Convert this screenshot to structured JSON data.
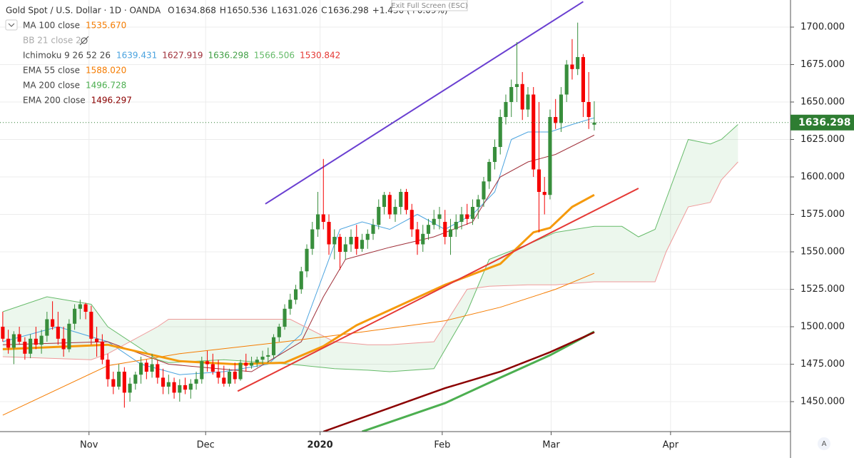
{
  "chart_data": {
    "type": "candlestick",
    "title": "Gold Spot / U.S. Dollar · 1D · OANDA",
    "ohlc_header": [
      {
        "key": "O",
        "value": "1634.868"
      },
      {
        "key": "H",
        "value": "1650.536"
      },
      {
        "key": "L",
        "value": "1631.026"
      },
      {
        "key": "C",
        "value": "1636.298"
      }
    ],
    "change": "+1.430 (+0.09%)",
    "exit_button": "Exit Full Screen (ESC)",
    "auto_button": "A",
    "last_price": {
      "value": 1636.298,
      "label": "1636.298"
    },
    "last_price_color": "#2e7d32",
    "up_color": "#388e3c",
    "down_color": "#f50000",
    "grid": true,
    "xlim": [
      -0.5,
      142.5
    ],
    "ylim": [
      1430,
      1718.1
    ],
    "yticks": [
      {
        "value": 1450,
        "label": "1450.000"
      },
      {
        "value": 1475,
        "label": "1475.000"
      },
      {
        "value": 1500,
        "label": "1500.000"
      },
      {
        "value": 1525,
        "label": "1525.000"
      },
      {
        "value": 1550,
        "label": "1550.000"
      },
      {
        "value": 1575,
        "label": "1575.000"
      },
      {
        "value": 1600,
        "label": "1600.000"
      },
      {
        "value": 1625,
        "label": "1625.000"
      },
      {
        "value": 1650,
        "label": "1650.000"
      },
      {
        "value": 1675,
        "label": "1675.000"
      },
      {
        "value": 1700,
        "label": "1700.000"
      }
    ],
    "xticks": [
      {
        "value": 15.6,
        "label": "Nov"
      },
      {
        "value": 36.7,
        "label": "Dec"
      },
      {
        "value": 57.4,
        "label": "2020"
      },
      {
        "value": 79.5,
        "label": "Feb"
      },
      {
        "value": 99.2,
        "label": "Mar"
      },
      {
        "value": 120.8,
        "label": "Apr"
      }
    ],
    "candles": [
      [
        1500,
        1510,
        1490,
        1492
      ],
      [
        1492,
        1498,
        1482,
        1486
      ],
      [
        1486,
        1497,
        1475,
        1495
      ],
      [
        1495,
        1500,
        1488,
        1490
      ],
      [
        1490,
        1493,
        1478,
        1482
      ],
      [
        1482,
        1495,
        1479,
        1492
      ],
      [
        1492,
        1500,
        1485,
        1488
      ],
      [
        1488,
        1498,
        1482,
        1494
      ],
      [
        1494,
        1510,
        1490,
        1505
      ],
      [
        1505,
        1517,
        1498,
        1500
      ],
      [
        1500,
        1510,
        1488,
        1492
      ],
      [
        1492,
        1500,
        1480,
        1485
      ],
      [
        1485,
        1505,
        1483,
        1502
      ],
      [
        1502,
        1515,
        1498,
        1512
      ],
      [
        1512,
        1518,
        1505,
        1515
      ],
      [
        1515,
        1516,
        1505,
        1510
      ],
      [
        1510,
        1514,
        1488,
        1492
      ],
      [
        1492,
        1500,
        1480,
        1490
      ],
      [
        1490,
        1495,
        1475,
        1478
      ],
      [
        1478,
        1482,
        1460,
        1465
      ],
      [
        1465,
        1470,
        1455,
        1460
      ],
      [
        1460,
        1475,
        1458,
        1470
      ],
      [
        1470,
        1473,
        1446,
        1456
      ],
      [
        1456,
        1466,
        1450,
        1462
      ],
      [
        1462,
        1470,
        1458,
        1468
      ],
      [
        1468,
        1480,
        1462,
        1476
      ],
      [
        1476,
        1478,
        1465,
        1470
      ],
      [
        1470,
        1482,
        1466,
        1475
      ],
      [
        1475,
        1478,
        1462,
        1466
      ],
      [
        1466,
        1472,
        1455,
        1460
      ],
      [
        1460,
        1468,
        1455,
        1463
      ],
      [
        1463,
        1466,
        1452,
        1456
      ],
      [
        1456,
        1465,
        1450,
        1461
      ],
      [
        1461,
        1466,
        1455,
        1458
      ],
      [
        1458,
        1465,
        1452,
        1462
      ],
      [
        1462,
        1470,
        1458,
        1465
      ],
      [
        1465,
        1480,
        1462,
        1477
      ],
      [
        1477,
        1484,
        1470,
        1475
      ],
      [
        1475,
        1482,
        1468,
        1470
      ],
      [
        1470,
        1478,
        1462,
        1466
      ],
      [
        1466,
        1474,
        1460,
        1462
      ],
      [
        1462,
        1472,
        1460,
        1470
      ],
      [
        1470,
        1476,
        1462,
        1465
      ],
      [
        1465,
        1478,
        1464,
        1476
      ],
      [
        1476,
        1482,
        1470,
        1474
      ],
      [
        1474,
        1480,
        1472,
        1476
      ],
      [
        1476,
        1480,
        1473,
        1478
      ],
      [
        1478,
        1484,
        1475,
        1480
      ],
      [
        1480,
        1486,
        1476,
        1481
      ],
      [
        1481,
        1495,
        1479,
        1493
      ],
      [
        1493,
        1502,
        1490,
        1500
      ],
      [
        1500,
        1515,
        1498,
        1512
      ],
      [
        1512,
        1522,
        1508,
        1518
      ],
      [
        1518,
        1528,
        1515,
        1525
      ],
      [
        1525,
        1540,
        1522,
        1537
      ],
      [
        1537,
        1555,
        1533,
        1552
      ],
      [
        1552,
        1570,
        1548,
        1565
      ],
      [
        1565,
        1590,
        1560,
        1575
      ],
      [
        1575,
        1612,
        1565,
        1570
      ],
      [
        1570,
        1575,
        1548,
        1555
      ],
      [
        1555,
        1565,
        1545,
        1560
      ],
      [
        1560,
        1562,
        1538,
        1550
      ],
      [
        1550,
        1560,
        1545,
        1555
      ],
      [
        1555,
        1565,
        1550,
        1560
      ],
      [
        1560,
        1568,
        1548,
        1552
      ],
      [
        1552,
        1562,
        1550,
        1558
      ],
      [
        1558,
        1565,
        1552,
        1562
      ],
      [
        1562,
        1572,
        1558,
        1568
      ],
      [
        1568,
        1585,
        1565,
        1580
      ],
      [
        1580,
        1590,
        1575,
        1588
      ],
      [
        1588,
        1590,
        1572,
        1575
      ],
      [
        1575,
        1585,
        1570,
        1580
      ],
      [
        1580,
        1592,
        1575,
        1590
      ],
      [
        1590,
        1592,
        1575,
        1578
      ],
      [
        1578,
        1582,
        1560,
        1565
      ],
      [
        1565,
        1570,
        1548,
        1555
      ],
      [
        1555,
        1568,
        1550,
        1562
      ],
      [
        1562,
        1572,
        1558,
        1568
      ],
      [
        1568,
        1578,
        1565,
        1572
      ],
      [
        1572,
        1580,
        1565,
        1575
      ],
      [
        1570,
        1578,
        1555,
        1560
      ],
      [
        1560,
        1572,
        1548,
        1565
      ],
      [
        1565,
        1575,
        1560,
        1570
      ],
      [
        1570,
        1580,
        1565,
        1575
      ],
      [
        1575,
        1582,
        1568,
        1572
      ],
      [
        1572,
        1585,
        1568,
        1580
      ],
      [
        1580,
        1588,
        1572,
        1585
      ],
      [
        1585,
        1600,
        1580,
        1597
      ],
      [
        1597,
        1612,
        1592,
        1610
      ],
      [
        1610,
        1625,
        1605,
        1620
      ],
      [
        1620,
        1645,
        1615,
        1640
      ],
      [
        1640,
        1655,
        1635,
        1650
      ],
      [
        1650,
        1665,
        1640,
        1660
      ],
      [
        1660,
        1690,
        1650,
        1662
      ],
      [
        1662,
        1670,
        1638,
        1645
      ],
      [
        1645,
        1660,
        1640,
        1655
      ],
      [
        1655,
        1660,
        1600,
        1605
      ],
      [
        1605,
        1650,
        1563,
        1590
      ],
      [
        1590,
        1600,
        1575,
        1588
      ],
      [
        1588,
        1645,
        1585,
        1640
      ],
      [
        1640,
        1652,
        1632,
        1636
      ],
      [
        1636,
        1660,
        1630,
        1655
      ],
      [
        1655,
        1678,
        1650,
        1675
      ],
      [
        1675,
        1692,
        1665,
        1672
      ],
      [
        1672,
        1703,
        1668,
        1680
      ],
      [
        1680,
        1682,
        1640,
        1650
      ],
      [
        1650,
        1670,
        1632,
        1640
      ],
      [
        1634.868,
        1650.536,
        1631.026,
        1636.298
      ]
    ],
    "series": [
      {
        "name": "MA 100 close",
        "last_label": "1535.670",
        "color": "#f57c00",
        "width": 1,
        "x": [
          0,
          19,
          32,
          51,
          64,
          80,
          90,
          100,
          107
        ],
        "values": [
          1441,
          1474,
          1482,
          1490,
          1496,
          1504,
          1513,
          1525,
          1535.67
        ]
      },
      {
        "name": "BB 21 close 2",
        "hidden": true
      },
      {
        "name": "EMA 55 close",
        "last_label": "1588.020",
        "color": "#f59a0c",
        "width": 3,
        "x": [
          0,
          19,
          32,
          42,
          51,
          58,
          64,
          80,
          90,
          96,
          99,
          103,
          107
        ],
        "values": [
          1485,
          1488,
          1477,
          1475,
          1476,
          1487,
          1501,
          1528,
          1542,
          1563,
          1566,
          1580,
          1588.02
        ]
      },
      {
        "name": "MA 200 close",
        "last_label": "1496.728",
        "color": "#4caf50",
        "width": 3,
        "x": [
          65,
          80,
          90,
          99,
          107
        ],
        "values": [
          1430,
          1449,
          1466,
          1481,
          1496.728
        ]
      },
      {
        "name": "EMA 200 close",
        "last_label": "1496.297",
        "color": "#8b0000",
        "width": 2.5,
        "x": [
          58,
          80,
          90,
          99,
          107
        ],
        "values": [
          1430,
          1459,
          1470,
          1483,
          1496.297
        ]
      }
    ],
    "ichimoku": {
      "name": "Ichimoku 9 26 52 26",
      "lines": [
        {
          "label": "1639.431",
          "color": "#4aa3df",
          "x": [
            0,
            10,
            19,
            25,
            32,
            40,
            48,
            54,
            58,
            61,
            65,
            70,
            75,
            80,
            85,
            89,
            92,
            95,
            99,
            103,
            107
          ],
          "values": [
            1490,
            1500,
            1490,
            1475,
            1468,
            1470,
            1475,
            1495,
            1535,
            1565,
            1570,
            1565,
            1575,
            1565,
            1575,
            1590,
            1625,
            1630,
            1630,
            1635,
            1639.431
          ]
        },
        {
          "label": "1627.919",
          "color": "#a0303a",
          "x": [
            0,
            19,
            30,
            45,
            54,
            58,
            62,
            70,
            78,
            85,
            90,
            95,
            100,
            107
          ],
          "values": [
            1488,
            1490,
            1475,
            1470,
            1490,
            1520,
            1545,
            1553,
            1560,
            1570,
            1600,
            1610,
            1615,
            1627.919
          ]
        },
        {
          "label": "1636.298",
          "color": "#43a047"
        },
        {
          "label": "1566.506",
          "color": "#66bb6a",
          "x": [
            0,
            8,
            16,
            19,
            28,
            30,
            40,
            52,
            60,
            66,
            70,
            78,
            84,
            88,
            95,
            100,
            107,
            112,
            115,
            118,
            120,
            124,
            128,
            130,
            133
          ],
          "values": [
            1510,
            1520,
            1515,
            1500,
            1478,
            1476,
            1478,
            1475,
            1472,
            1471,
            1470,
            1472,
            1510,
            1545,
            1555,
            1563,
            1567,
            1567,
            1560,
            1565,
            1585,
            1625,
            1622,
            1625,
            1635
          ]
        },
        {
          "label": "1530.842",
          "color": "#ef9a9a",
          "x": [
            0,
            8,
            16,
            19,
            28,
            30,
            40,
            52,
            60,
            66,
            70,
            78,
            84,
            88,
            95,
            100,
            107,
            112,
            115,
            118,
            120,
            124,
            128,
            130,
            133
          ],
          "values": [
            1480,
            1479,
            1478,
            1482,
            1500,
            1505,
            1505,
            1505,
            1490,
            1488,
            1488,
            1490,
            1525,
            1527,
            1528,
            1528,
            1530,
            1530,
            1530,
            1530,
            1550,
            1580,
            1583,
            1598,
            1610
          ]
        }
      ]
    },
    "trendlines": [
      {
        "color": "#6a3fd1",
        "x": [
          47.5,
          105
        ],
        "values": [
          1582,
          1717
        ]
      },
      {
        "color": "#e53935",
        "x": [
          42.5,
          115
        ],
        "values": [
          1457,
          1592.4
        ]
      }
    ]
  }
}
